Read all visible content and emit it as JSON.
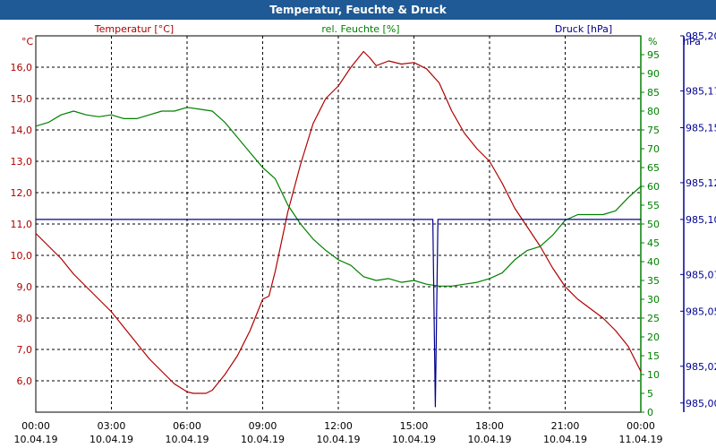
{
  "window": {
    "title": "Temperatur, Feuchte & Druck"
  },
  "chart_data": {
    "type": "line",
    "title": "Temperatur, Feuchte & Druck",
    "colors": {
      "temperature": "#b00000",
      "humidity": "#008000",
      "pressure": "#000090"
    },
    "x_ticks": [
      {
        "time": "00:00",
        "date": "10.04.19"
      },
      {
        "time": "03:00",
        "date": "10.04.19"
      },
      {
        "time": "06:00",
        "date": "10.04.19"
      },
      {
        "time": "09:00",
        "date": "10.04.19"
      },
      {
        "time": "12:00",
        "date": "10.04.19"
      },
      {
        "time": "15:00",
        "date": "10.04.19"
      },
      {
        "time": "18:00",
        "date": "10.04.19"
      },
      {
        "time": "21:00",
        "date": "10.04.19"
      },
      {
        "time": "00:00",
        "date": "11.04.19"
      }
    ],
    "grid": true,
    "axes": {
      "left": {
        "unit": "°C",
        "ticks": [
          "16,0",
          "15,0",
          "14,0",
          "13,0",
          "12,0",
          "11,0",
          "10,0",
          "9,0",
          "8,0",
          "7,0",
          "6,0"
        ],
        "ylim": [
          5.0,
          17.0
        ]
      },
      "middle": {
        "unit": "%",
        "ticks": [
          "95",
          "90",
          "85",
          "80",
          "75",
          "70",
          "65",
          "60",
          "55",
          "50",
          "45",
          "40",
          "35",
          "30",
          "25",
          "20",
          "15",
          "10",
          "5",
          "0"
        ],
        "ylim": [
          0,
          100
        ]
      },
      "right": {
        "unit": "hPa",
        "ticks": [
          "985,20",
          "985,17",
          "985,15",
          "985,12",
          "985,10",
          "985,07",
          "985,05",
          "985,02",
          "985,00"
        ],
        "ylim": [
          984.995,
          985.2
        ]
      }
    },
    "series": [
      {
        "name": "Temperatur [°C]",
        "axis": "left",
        "x": [
          0,
          0.5,
          1,
          1.5,
          2,
          2.5,
          3,
          3.5,
          4,
          4.5,
          5,
          5.5,
          6,
          6.25,
          6.5,
          6.75,
          7,
          7.5,
          8,
          8.5,
          9,
          9.25,
          9.5,
          10,
          10.5,
          11,
          11.5,
          12,
          12.5,
          13,
          13.25,
          13.5,
          14,
          14.5,
          15,
          15.5,
          16,
          16.5,
          17,
          17.5,
          18,
          18.5,
          19,
          19.5,
          20,
          20.5,
          21,
          21.5,
          22,
          22.5,
          23,
          23.5,
          24
        ],
        "values": [
          10.7,
          10.3,
          9.9,
          9.4,
          9.0,
          8.6,
          8.2,
          7.7,
          7.2,
          6.7,
          6.3,
          5.9,
          5.65,
          5.6,
          5.6,
          5.6,
          5.7,
          6.2,
          6.8,
          7.6,
          8.6,
          8.7,
          9.5,
          11.4,
          12.9,
          14.2,
          15.0,
          15.4,
          16.0,
          16.5,
          16.3,
          16.05,
          16.2,
          16.1,
          16.15,
          15.95,
          15.5,
          14.6,
          13.9,
          13.4,
          13.0,
          12.3,
          11.5,
          10.9,
          10.3,
          9.6,
          9.0,
          8.6,
          8.3,
          8.0,
          7.6,
          7.1,
          6.3
        ]
      },
      {
        "name": "rel. Feuchte [%]",
        "axis": "middle",
        "x": [
          0,
          0.5,
          1,
          1.5,
          2,
          2.5,
          3,
          3.5,
          4,
          4.5,
          5,
          5.5,
          6,
          6.5,
          7,
          7.5,
          8,
          8.5,
          9,
          9.5,
          10,
          10.5,
          11,
          11.5,
          12,
          12.5,
          13,
          13.5,
          14,
          14.5,
          15,
          15.5,
          16,
          16.5,
          17,
          17.5,
          18,
          18.5,
          19,
          19.5,
          20,
          20.5,
          21,
          21.5,
          22,
          22.5,
          23,
          23.5,
          24
        ],
        "values": [
          76,
          77,
          79,
          80,
          79,
          78.5,
          79,
          78,
          78,
          79,
          80,
          80,
          81,
          80.5,
          80,
          77,
          73,
          69,
          65,
          62,
          55,
          50,
          46,
          43,
          40.5,
          39,
          36,
          35,
          35.5,
          34.5,
          35,
          34,
          33.5,
          33.5,
          34,
          34.5,
          35.5,
          37,
          40.5,
          43,
          44,
          47,
          51,
          52.5,
          52.5,
          52.5,
          53.5,
          57,
          60
        ]
      },
      {
        "name": "Druck [hPa]",
        "axis": "right",
        "x": [
          0,
          15.65,
          15.75,
          15.85,
          15.95,
          16.05,
          24
        ],
        "values": [
          985.1,
          985.1,
          985.1,
          984.998,
          985.1,
          985.1,
          985.1
        ]
      }
    ]
  }
}
